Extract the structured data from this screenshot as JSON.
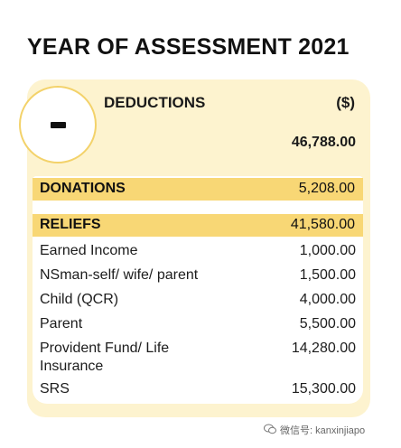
{
  "title": "YEAR OF ASSESSMENT 2021",
  "deductions": {
    "label": "DEDUCTIONS",
    "unit": "($)",
    "total": "46,788.00",
    "symbol": "-"
  },
  "donations": {
    "label": "DONATIONS",
    "value": "5,208.00"
  },
  "reliefs": {
    "label": "RELIEFS",
    "value": "41,580.00",
    "items": [
      {
        "label": "Earned Income",
        "value": "1,000.00"
      },
      {
        "label": "NSman-self/ wife/ parent",
        "value": "1,500.00"
      },
      {
        "label": "Child (QCR)",
        "value": "4,000.00"
      },
      {
        "label": "Parent",
        "value": "5,500.00"
      },
      {
        "label": "Provident Fund/ Life Insurance",
        "value": "14,280.00"
      },
      {
        "label": "SRS",
        "value": "15,300.00"
      }
    ]
  },
  "watermark": "微信号: kanxinjiapo",
  "colors": {
    "accent": "#f8d775",
    "card": "#fdf3cf",
    "circle_border": "#f3d26a"
  }
}
